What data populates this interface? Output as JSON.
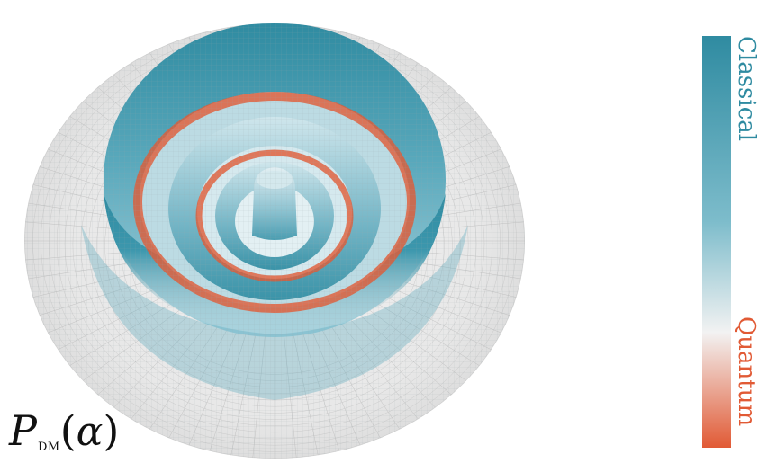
{
  "label": {
    "symbol": "P",
    "subscript": "DM",
    "open_paren": "(",
    "argument": "α",
    "close_paren": ")"
  },
  "colorbar": {
    "top_label": "Classical",
    "bottom_label": "Quantum",
    "top_color": "#2f8ba1",
    "mid_color": "#f2f2f2",
    "bottom_color": "#e15a35"
  },
  "surface": {
    "base_color": "#e6e6e6",
    "classical_color": "#2f8ba1",
    "quantum_color": "#e15a35"
  }
}
